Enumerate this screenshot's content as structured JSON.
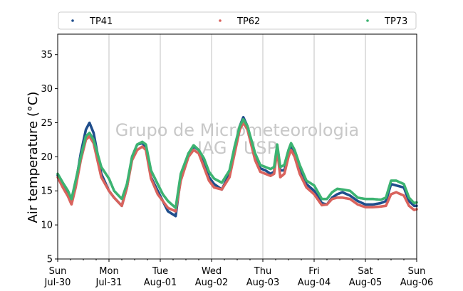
{
  "chart_data": {
    "type": "line",
    "title": "",
    "xlabel": "",
    "ylabel": "Air temperature (°C)",
    "ylim": [
      5,
      38
    ],
    "yticks": [
      "5",
      "10",
      "15",
      "20",
      "25",
      "30",
      "35"
    ],
    "xlim": [
      0,
      7
    ],
    "xticks": [
      {
        "day": "Sun",
        "date": "Jul-30"
      },
      {
        "day": "Mon",
        "date": "Jul-31"
      },
      {
        "day": "Tue",
        "date": "Aug-01"
      },
      {
        "day": "Wed",
        "date": "Aug-02"
      },
      {
        "day": "Thu",
        "date": "Aug-03"
      },
      {
        "day": "Fri",
        "date": "Aug-04"
      },
      {
        "day": "Sat",
        "date": "Aug-05"
      },
      {
        "day": "Sun",
        "date": "Aug-06"
      }
    ],
    "grid": "vertical",
    "legend_placement": "top",
    "watermark": [
      "Grupo de Micrometeorologia",
      "IAG / USP"
    ],
    "series": [
      {
        "name": "TP41",
        "color": "#1f4e8c",
        "points": [
          [
            0,
            17.3
          ],
          [
            0.1,
            16.0
          ],
          [
            0.2,
            14.6
          ],
          [
            0.27,
            13.3
          ],
          [
            0.35,
            16.0
          ],
          [
            0.45,
            20.5
          ],
          [
            0.55,
            24.0
          ],
          [
            0.62,
            25.0
          ],
          [
            0.7,
            23.5
          ],
          [
            0.85,
            17.5
          ],
          [
            1.0,
            15.0
          ],
          [
            1.1,
            14.0
          ],
          [
            1.25,
            12.8
          ],
          [
            1.35,
            15.5
          ],
          [
            1.45,
            20.0
          ],
          [
            1.55,
            21.8
          ],
          [
            1.65,
            22.0
          ],
          [
            1.72,
            21.5
          ],
          [
            1.82,
            17.0
          ],
          [
            1.95,
            15.0
          ],
          [
            2.05,
            13.5
          ],
          [
            2.15,
            12.0
          ],
          [
            2.3,
            11.3
          ],
          [
            2.4,
            17.0
          ],
          [
            2.55,
            20.5
          ],
          [
            2.65,
            21.5
          ],
          [
            2.75,
            21.0
          ],
          [
            2.85,
            19.5
          ],
          [
            2.95,
            17.0
          ],
          [
            3.05,
            16.0
          ],
          [
            3.2,
            15.2
          ],
          [
            3.35,
            17.5
          ],
          [
            3.45,
            21.0
          ],
          [
            3.55,
            24.5
          ],
          [
            3.62,
            25.8
          ],
          [
            3.7,
            24.5
          ],
          [
            3.85,
            20.0
          ],
          [
            3.95,
            18.3
          ],
          [
            4.05,
            18.0
          ],
          [
            4.15,
            17.5
          ],
          [
            4.22,
            17.8
          ],
          [
            4.28,
            21.5
          ],
          [
            4.34,
            18.0
          ],
          [
            4.42,
            18.0
          ],
          [
            4.5,
            20.5
          ],
          [
            4.55,
            21.5
          ],
          [
            4.62,
            20.5
          ],
          [
            4.72,
            18.0
          ],
          [
            4.85,
            16.0
          ],
          [
            5.0,
            15.0
          ],
          [
            5.15,
            13.2
          ],
          [
            5.25,
            13.0
          ],
          [
            5.35,
            14.0
          ],
          [
            5.45,
            14.5
          ],
          [
            5.55,
            14.8
          ],
          [
            5.7,
            14.3
          ],
          [
            5.85,
            13.5
          ],
          [
            6.0,
            13.0
          ],
          [
            6.15,
            13.0
          ],
          [
            6.3,
            13.2
          ],
          [
            6.4,
            13.5
          ],
          [
            6.5,
            16.0
          ],
          [
            6.6,
            15.8
          ],
          [
            6.75,
            15.5
          ],
          [
            6.85,
            13.5
          ],
          [
            6.95,
            12.8
          ],
          [
            7.0,
            12.8
          ]
        ]
      },
      {
        "name": "TP62",
        "color": "#d9635d",
        "points": [
          [
            0,
            17.0
          ],
          [
            0.1,
            15.5
          ],
          [
            0.2,
            14.2
          ],
          [
            0.27,
            13.0
          ],
          [
            0.35,
            15.5
          ],
          [
            0.45,
            19.5
          ],
          [
            0.55,
            22.5
          ],
          [
            0.62,
            23.0
          ],
          [
            0.7,
            22.0
          ],
          [
            0.85,
            17.0
          ],
          [
            1.0,
            15.0
          ],
          [
            1.1,
            14.0
          ],
          [
            1.25,
            12.8
          ],
          [
            1.35,
            15.5
          ],
          [
            1.45,
            19.5
          ],
          [
            1.55,
            21.0
          ],
          [
            1.65,
            21.5
          ],
          [
            1.72,
            21.0
          ],
          [
            1.82,
            16.8
          ],
          [
            1.95,
            14.5
          ],
          [
            2.05,
            13.5
          ],
          [
            2.15,
            12.5
          ],
          [
            2.3,
            12.0
          ],
          [
            2.4,
            16.5
          ],
          [
            2.55,
            20.0
          ],
          [
            2.65,
            21.0
          ],
          [
            2.75,
            20.5
          ],
          [
            2.85,
            18.5
          ],
          [
            2.95,
            16.5
          ],
          [
            3.05,
            15.5
          ],
          [
            3.2,
            15.2
          ],
          [
            3.35,
            17.0
          ],
          [
            3.45,
            20.5
          ],
          [
            3.55,
            24.0
          ],
          [
            3.62,
            25.0
          ],
          [
            3.7,
            24.0
          ],
          [
            3.85,
            19.5
          ],
          [
            3.95,
            17.8
          ],
          [
            4.05,
            17.5
          ],
          [
            4.15,
            17.2
          ],
          [
            4.22,
            17.5
          ],
          [
            4.28,
            21.0
          ],
          [
            4.34,
            17.0
          ],
          [
            4.42,
            17.5
          ],
          [
            4.5,
            20.0
          ],
          [
            4.55,
            21.0
          ],
          [
            4.62,
            20.0
          ],
          [
            4.72,
            17.5
          ],
          [
            4.85,
            15.5
          ],
          [
            5.0,
            14.5
          ],
          [
            5.15,
            12.9
          ],
          [
            5.25,
            13.0
          ],
          [
            5.35,
            13.8
          ],
          [
            5.45,
            14.0
          ],
          [
            5.55,
            14.0
          ],
          [
            5.7,
            13.8
          ],
          [
            5.85,
            13.0
          ],
          [
            6.0,
            12.6
          ],
          [
            6.15,
            12.6
          ],
          [
            6.3,
            12.7
          ],
          [
            6.4,
            12.8
          ],
          [
            6.5,
            14.5
          ],
          [
            6.6,
            14.8
          ],
          [
            6.75,
            14.3
          ],
          [
            6.85,
            12.8
          ],
          [
            6.95,
            12.2
          ],
          [
            7.0,
            12.3
          ]
        ]
      },
      {
        "name": "TP73",
        "color": "#3cb371",
        "points": [
          [
            0,
            17.5
          ],
          [
            0.1,
            16.2
          ],
          [
            0.2,
            15.0
          ],
          [
            0.27,
            13.8
          ],
          [
            0.35,
            16.5
          ],
          [
            0.45,
            20.0
          ],
          [
            0.55,
            23.0
          ],
          [
            0.62,
            23.5
          ],
          [
            0.7,
            22.5
          ],
          [
            0.85,
            18.5
          ],
          [
            1.0,
            16.8
          ],
          [
            1.1,
            15.0
          ],
          [
            1.25,
            13.8
          ],
          [
            1.35,
            16.0
          ],
          [
            1.45,
            20.0
          ],
          [
            1.55,
            21.8
          ],
          [
            1.65,
            22.2
          ],
          [
            1.72,
            21.8
          ],
          [
            1.82,
            18.0
          ],
          [
            1.95,
            16.0
          ],
          [
            2.05,
            14.5
          ],
          [
            2.15,
            13.5
          ],
          [
            2.3,
            12.5
          ],
          [
            2.4,
            17.5
          ],
          [
            2.55,
            20.5
          ],
          [
            2.65,
            21.7
          ],
          [
            2.75,
            21.0
          ],
          [
            2.85,
            19.8
          ],
          [
            2.95,
            17.8
          ],
          [
            3.05,
            16.8
          ],
          [
            3.2,
            16.2
          ],
          [
            3.35,
            18.0
          ],
          [
            3.45,
            21.5
          ],
          [
            3.55,
            24.5
          ],
          [
            3.62,
            25.5
          ],
          [
            3.7,
            24.5
          ],
          [
            3.85,
            20.5
          ],
          [
            3.95,
            18.8
          ],
          [
            4.05,
            18.5
          ],
          [
            4.15,
            18.2
          ],
          [
            4.22,
            18.5
          ],
          [
            4.28,
            21.8
          ],
          [
            4.34,
            18.5
          ],
          [
            4.42,
            18.8
          ],
          [
            4.5,
            21.0
          ],
          [
            4.55,
            22.0
          ],
          [
            4.62,
            21.0
          ],
          [
            4.72,
            18.8
          ],
          [
            4.85,
            16.5
          ],
          [
            5.0,
            15.8
          ],
          [
            5.15,
            13.8
          ],
          [
            5.25,
            13.8
          ],
          [
            5.35,
            14.8
          ],
          [
            5.45,
            15.3
          ],
          [
            5.55,
            15.2
          ],
          [
            5.7,
            15.0
          ],
          [
            5.85,
            14.0
          ],
          [
            6.0,
            13.8
          ],
          [
            6.15,
            13.8
          ],
          [
            6.3,
            13.7
          ],
          [
            6.4,
            14.0
          ],
          [
            6.5,
            16.5
          ],
          [
            6.6,
            16.5
          ],
          [
            6.75,
            16.0
          ],
          [
            6.85,
            14.0
          ],
          [
            6.95,
            13.2
          ],
          [
            7.0,
            13.3
          ]
        ]
      }
    ]
  }
}
